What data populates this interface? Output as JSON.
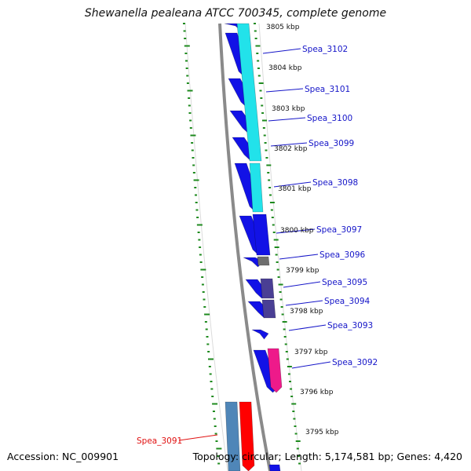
{
  "title": "Shewanella pealeana ATCC 700345, complete genome",
  "footer": {
    "accession": "Accession: NC_009901",
    "topology": "Topology: circular; Length: 5,174,581 bp; Genes: 4,420"
  },
  "colors": {
    "strand_blue": "#1212e6",
    "cyan": "#22e2ea",
    "dark_slate": "#4a3f94",
    "grey": "#6e6e6e",
    "magenta": "#ee1a8a",
    "steel_blue": "#4f86b8",
    "red": "#ff0000",
    "tick_green": "#1e8a1e",
    "label_blue": "#1515c8",
    "label_red": "#e01010",
    "backbone": "#8a8a8a"
  },
  "kbp_labels": [
    "3805 kbp",
    "3804 kbp",
    "3803 kbp",
    "3802 kbp",
    "3801 kbp",
    "3800 kbp",
    "3799 kbp",
    "3798 kbp",
    "3797 kbp",
    "3796 kbp",
    "3795 kbp"
  ],
  "gene_labels": [
    "Spea_3102",
    "Spea_3101",
    "Spea_3100",
    "Spea_3099",
    "Spea_3098",
    "Spea_3097",
    "Spea_3096",
    "Spea_3095",
    "Spea_3094",
    "Spea_3093",
    "Spea_3092",
    "Spea_3091"
  ]
}
